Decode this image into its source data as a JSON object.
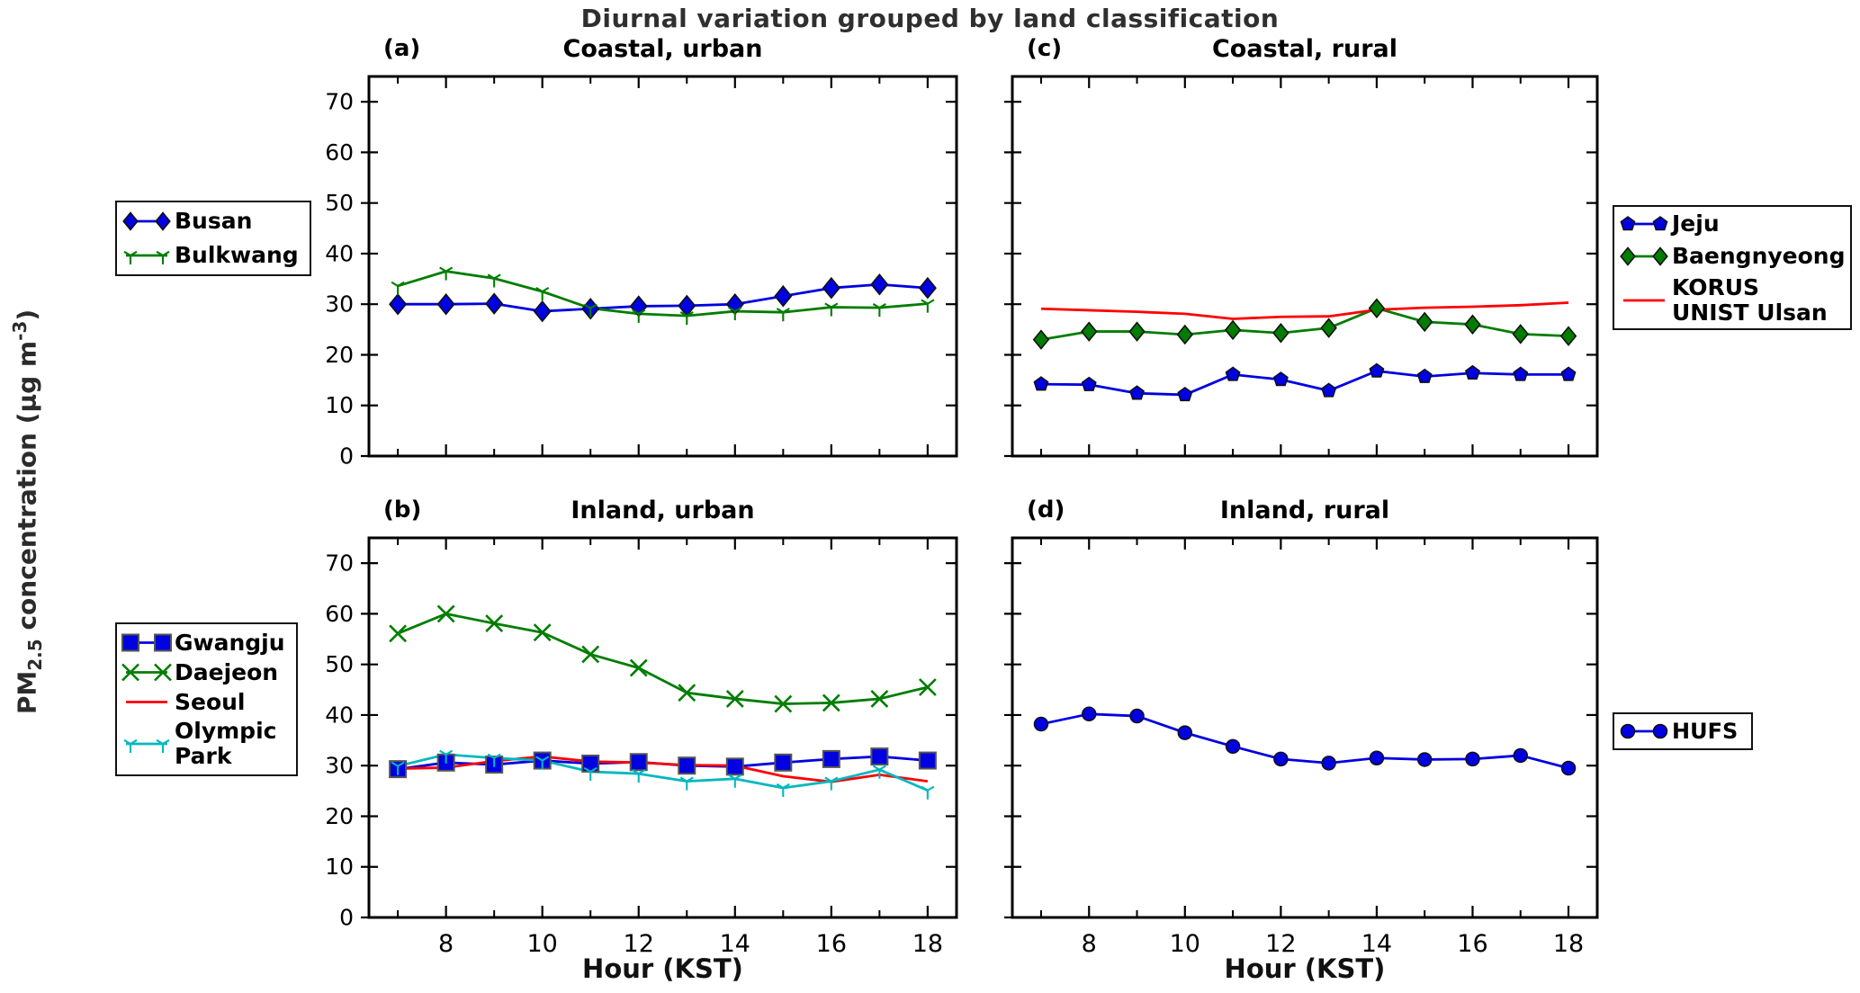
{
  "title": "Diurnal variation grouped by land classification",
  "title_color": "#2f2f2f",
  "xlabel": "Hour (KST)",
  "ylabel": {
    "p1": "PM",
    "sub": "2.5",
    "p2": " concentration (µg m",
    "sup": "-3",
    "p3": ")"
  },
  "colors": {
    "blue": "#0000e0",
    "green": "#007d00",
    "red": "#ff0000",
    "cyan": "#00b8be"
  },
  "axis": {
    "hours": [
      7,
      8,
      9,
      10,
      11,
      12,
      13,
      14,
      15,
      16,
      17,
      18
    ],
    "xlim": [
      6.4,
      18.6
    ],
    "ylim": [
      0,
      75
    ],
    "yticks": [
      0,
      10,
      20,
      30,
      40,
      50,
      60,
      70
    ],
    "xticks": [
      8,
      10,
      12,
      14,
      16,
      18
    ],
    "xminor": [
      7,
      9,
      11,
      13,
      15,
      17
    ]
  },
  "chart_data": [
    {
      "id": "a",
      "tag": "(a)",
      "title": "Coastal, urban",
      "type": "line",
      "xlabel_shown": false,
      "yticklabels_shown": true,
      "series": [
        {
          "name": "Busan",
          "color": "blue",
          "marker": "diamond",
          "msize": 11,
          "label_lines": [
            "Busan"
          ],
          "values": [
            30.0,
            30.0,
            30.1,
            28.6,
            29.1,
            29.6,
            29.7,
            30.0,
            31.6,
            33.2,
            33.9,
            33.2
          ]
        },
        {
          "name": "Bulkwang",
          "color": "green",
          "marker": "tri_down",
          "msize": 7,
          "label_lines": [
            "Bulkwang"
          ],
          "values": [
            33.6,
            36.5,
            35.1,
            32.5,
            29.2,
            28.1,
            27.7,
            28.6,
            28.4,
            29.4,
            29.3,
            30.1
          ]
        }
      ]
    },
    {
      "id": "c",
      "tag": "(c)",
      "title": "Coastal, rural",
      "type": "line",
      "xlabel_shown": false,
      "yticklabels_shown": false,
      "series": [
        {
          "name": "Jeju",
          "color": "blue",
          "marker": "pentagon",
          "msize": 8,
          "label_lines": [
            "Jeju"
          ],
          "values": [
            14.2,
            14.1,
            12.4,
            12.1,
            16.1,
            15.1,
            12.9,
            16.8,
            15.7,
            16.4,
            16.1,
            16.1
          ]
        },
        {
          "name": "Baengnyeong",
          "color": "green",
          "marker": "diamond",
          "msize": 10,
          "label_lines": [
            "Baengnyeong"
          ],
          "values": [
            23.0,
            24.6,
            24.6,
            24.0,
            24.9,
            24.3,
            25.3,
            29.2,
            26.5,
            26.0,
            24.1,
            23.7
          ]
        },
        {
          "name": "KORUS UNIST Ulsan",
          "color": "red",
          "marker": "none",
          "msize": 0,
          "label_lines": [
            "KORUS",
            "UNIST Ulsan"
          ],
          "values": [
            29.1,
            28.8,
            28.5,
            28.1,
            27.1,
            27.5,
            27.6,
            28.9,
            29.3,
            29.5,
            29.8,
            30.3
          ]
        }
      ]
    },
    {
      "id": "b",
      "tag": "(b)",
      "title": "Inland, urban",
      "type": "line",
      "xlabel_shown": true,
      "yticklabels_shown": true,
      "series": [
        {
          "name": "Gwangju",
          "color": "blue",
          "marker": "square",
          "msize": 9,
          "label_lines": [
            "Gwangju"
          ],
          "values": [
            29.3,
            30.6,
            30.2,
            31.0,
            30.4,
            30.7,
            30.0,
            29.8,
            30.6,
            31.3,
            31.8,
            31.0
          ]
        },
        {
          "name": "Daejeon",
          "color": "green",
          "marker": "x",
          "msize": 9,
          "label_lines": [
            "Daejeon"
          ],
          "values": [
            56.1,
            60.0,
            58.1,
            56.3,
            52.0,
            49.3,
            44.4,
            43.2,
            42.2,
            42.4,
            43.2,
            45.5
          ]
        },
        {
          "name": "Seoul",
          "color": "red",
          "marker": "none",
          "msize": 0,
          "label_lines": [
            "Seoul"
          ],
          "values": [
            29.4,
            29.6,
            30.9,
            31.8,
            30.8,
            30.6,
            30.1,
            30.0,
            27.9,
            26.8,
            28.2,
            26.9
          ]
        },
        {
          "name": "Olympic Park",
          "color": "cyan",
          "marker": "tri_down",
          "msize": 7,
          "label_lines": [
            "Olympic",
            "Park"
          ],
          "values": [
            29.9,
            32.2,
            31.5,
            31.0,
            28.8,
            28.4,
            26.9,
            27.4,
            25.6,
            26.9,
            29.2,
            25.1
          ]
        }
      ]
    },
    {
      "id": "d",
      "tag": "(d)",
      "title": "Inland, rural",
      "type": "line",
      "xlabel_shown": true,
      "yticklabels_shown": false,
      "series": [
        {
          "name": "HUFS",
          "color": "blue",
          "marker": "circle",
          "msize": 7.5,
          "label_lines": [
            "HUFS"
          ],
          "values": [
            38.2,
            40.2,
            39.8,
            36.5,
            33.8,
            31.3,
            30.5,
            31.5,
            31.2,
            31.3,
            32.0,
            29.5
          ]
        }
      ]
    }
  ]
}
